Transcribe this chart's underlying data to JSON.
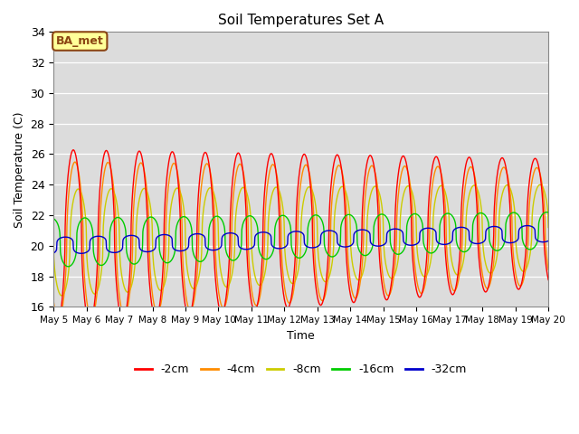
{
  "title": "Soil Temperatures Set A",
  "xlabel": "Time",
  "ylabel": "Soil Temperature (C)",
  "ylim": [
    16,
    34
  ],
  "xlim": [
    0,
    15
  ],
  "yticks": [
    16,
    18,
    20,
    22,
    24,
    26,
    28,
    30,
    32,
    34
  ],
  "xtick_labels": [
    "May 5",
    "May 6",
    "May 7",
    "May 8",
    "May 9",
    "May 10",
    "May 11",
    "May 12",
    "May 13",
    "May 14",
    "May 15",
    "May 16",
    "May 17",
    "May 18",
    "May 19",
    "May 20"
  ],
  "annotation_text": "BA_met",
  "annotation_bg": "#FFFF99",
  "annotation_border": "#8B4513",
  "colors": {
    "-2cm": "#FF0000",
    "-4cm": "#FF8C00",
    "-8cm": "#CCCC00",
    "-16cm": "#00CC00",
    "-32cm": "#0000CC"
  },
  "legend_labels": [
    "-2cm",
    "-4cm",
    "-8cm",
    "-16cm",
    "-32cm"
  ],
  "bg_color": "#DCDCDC",
  "n_points": 1441,
  "day_start": 0,
  "day_end": 15,
  "base_temp": 20.0,
  "linewidth": 1.0
}
